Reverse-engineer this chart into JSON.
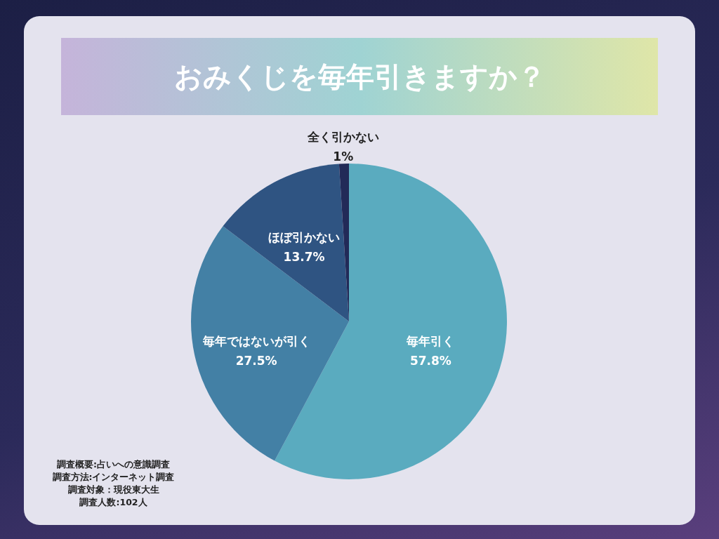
{
  "chart_data": {
    "type": "pie",
    "title": "おみくじを毎年引きますか？",
    "categories": [
      "毎年引く",
      "毎年ではないが引く",
      "ほぼ引かない",
      "全く引かない"
    ],
    "values": [
      57.8,
      27.5,
      13.7,
      1
    ],
    "colors": [
      "#5aabbf",
      "#4380a5",
      "#2f5482",
      "#222a58"
    ],
    "value_labels": [
      "57.8%",
      "27.5%",
      "13.7%",
      "1%"
    ],
    "legend": false,
    "annotations": [
      "調査概要:占いへの意識調査",
      "調査方法:インターネット調査",
      "調査対象：現役東大生",
      "調査人数:102人"
    ]
  }
}
